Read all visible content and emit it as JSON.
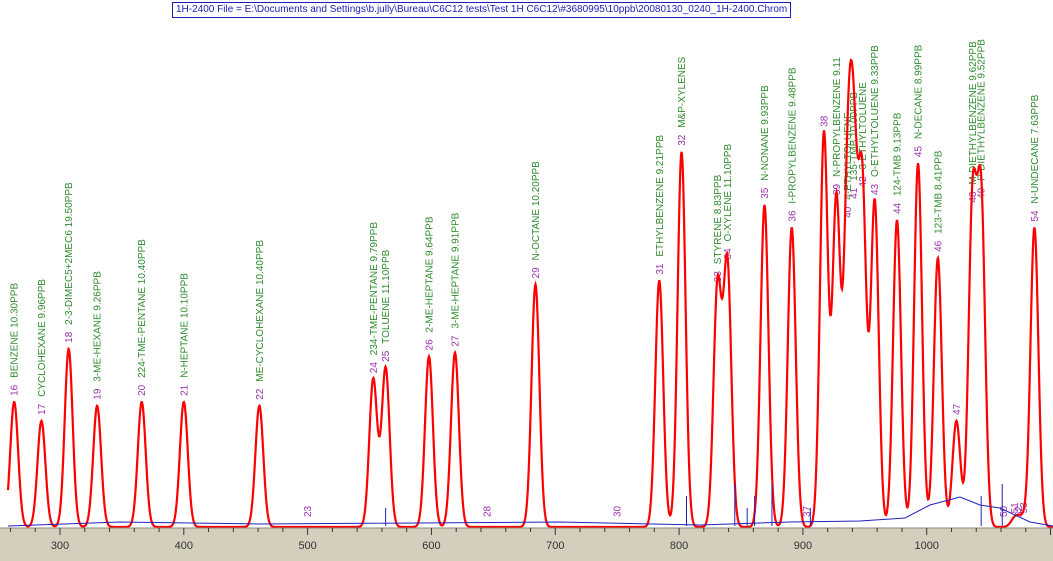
{
  "window_title": "1H-2400 File = E:\\Documents and Settings\\b.jully\\Bureau\\C6C12 tests\\Test 1H C6C12\\#3680995\\10ppb\\20080130_0240_1H-2400.Chrom",
  "chart_data": {
    "type": "line",
    "title": "1H-2400 File = E:\\Documents and Settings\\b.jully\\Bureau\\C6C12 tests\\Test 1H C6C12\\#3680995\\10ppb\\20080130_0240_1H-2400.Chrom",
    "xlabel": "",
    "ylabel": "",
    "xlim": [
      258,
      1102
    ],
    "ylim": [
      0,
      100
    ],
    "x_ticks": [
      "300",
      "400",
      "500",
      "600",
      "700",
      "800",
      "900",
      "1000"
    ],
    "grid": false,
    "colors": {
      "trace": "#ff0000",
      "baseline": "#2222bb",
      "peak_number": "#9933aa",
      "compound_name": "#2e8b2e",
      "axis_band": "#d4cfbd",
      "title_text": "#1c1cb8"
    },
    "peaks": [
      {
        "id": "16",
        "x": 263,
        "h": 33,
        "name": "BENZENE",
        "conc": "10.30PPB"
      },
      {
        "id": "17",
        "x": 285,
        "h": 28,
        "name": "CYCLOHEXANE",
        "conc": "9.96PPB"
      },
      {
        "id": "18",
        "x": 307,
        "h": 47,
        "name": "2-3-DIMEC5+2MEC6",
        "conc": "19.50PPB"
      },
      {
        "id": "19",
        "x": 330,
        "h": 32,
        "name": "3-ME-HEXANE",
        "conc": "9.26PPB"
      },
      {
        "id": "20",
        "x": 366,
        "h": 33,
        "name": "224-TME-PENTANE",
        "conc": "10.40PPB"
      },
      {
        "id": "21",
        "x": 400,
        "h": 33,
        "name": "N-HEPTANE",
        "conc": "10.10PPB"
      },
      {
        "id": "22",
        "x": 461,
        "h": 32,
        "name": "ME-CYCLOHEXANE",
        "conc": "10.40PPB"
      },
      {
        "id": "23",
        "x": 500,
        "h": 0,
        "name": "",
        "conc": ""
      },
      {
        "id": "24",
        "x": 553,
        "h": 39,
        "name": "234-TME-PENTANE",
        "conc": "9.79PPB"
      },
      {
        "id": "25",
        "x": 563,
        "h": 42,
        "name": "TOLUENE",
        "conc": "11.10PPB"
      },
      {
        "id": "26",
        "x": 598,
        "h": 45,
        "name": "2-ME-HEPTANE",
        "conc": "9.64PPB"
      },
      {
        "id": "27",
        "x": 619,
        "h": 46,
        "name": "3-ME-HEPTANE",
        "conc": "9.91PPB"
      },
      {
        "id": "28",
        "x": 645,
        "h": 0,
        "name": "",
        "conc": ""
      },
      {
        "id": "29",
        "x": 684,
        "h": 64,
        "name": "N-OCTANE",
        "conc": "10.20PPB"
      },
      {
        "id": "30",
        "x": 750,
        "h": 0,
        "name": "",
        "conc": ""
      },
      {
        "id": "31",
        "x": 784,
        "h": 65,
        "name": "ETHYLBENZENE",
        "conc": "9.21PPB"
      },
      {
        "id": "32",
        "x": 802,
        "h": 99,
        "name": "M&P-XYLENES",
        "conc": ""
      },
      {
        "id": "33",
        "x": 831,
        "h": 63,
        "name": "STYRENE",
        "conc": "8.83PPB"
      },
      {
        "id": "34",
        "x": 839,
        "h": 69,
        "name": "O-XYLENE",
        "conc": "11.10PPB"
      },
      {
        "id": "35",
        "x": 869,
        "h": 85,
        "name": "N-NONANE",
        "conc": "9.93PPB"
      },
      {
        "id": "36",
        "x": 891,
        "h": 79,
        "name": "I-PROPYLBENZENE",
        "conc": "9.48PPB"
      },
      {
        "id": "37",
        "x": 903,
        "h": 0,
        "name": "",
        "conc": ""
      },
      {
        "id": "38",
        "x": 917,
        "h": 104,
        "name": "",
        "conc": ""
      },
      {
        "id": "39",
        "x": 927,
        "h": 86,
        "name": "N-PROPYLBENZENE",
        "conc": "9.11"
      },
      {
        "id": "40",
        "x": 936,
        "h": 80,
        "name": "4-ETHYLTOLUENE",
        "conc": ""
      },
      {
        "id": "41",
        "x": 941,
        "h": 85,
        "name": "135-TMB",
        "conc": "10.00PPB"
      },
      {
        "id": "42",
        "x": 948,
        "h": 88,
        "name": "3-ETHYLTOLUENE",
        "conc": ""
      },
      {
        "id": "43",
        "x": 958,
        "h": 86,
        "name": "O-ETHYLTOLUENE",
        "conc": "9.33PPB"
      },
      {
        "id": "44",
        "x": 976,
        "h": 81,
        "name": "124-TMB",
        "conc": "9.13PPB"
      },
      {
        "id": "45",
        "x": 993,
        "h": 96,
        "name": "N-DECANE",
        "conc": "8.99PPB"
      },
      {
        "id": "46",
        "x": 1009,
        "h": 71,
        "name": "123-TMB",
        "conc": "8.41PPB"
      },
      {
        "id": "47",
        "x": 1024,
        "h": 28,
        "name": "",
        "conc": ""
      },
      {
        "id": "48",
        "x": 1037,
        "h": 84,
        "name": "M-DIETHYLBENZENE",
        "conc": "9.62PPB"
      },
      {
        "id": "49",
        "x": 1044,
        "h": 85,
        "name": "P-DIETHYLBENZENE",
        "conc": "9.52PPB"
      },
      {
        "id": "50",
        "x": 1062,
        "h": 0,
        "name": "",
        "conc": ""
      },
      {
        "id": "51",
        "x": 1071,
        "h": 2,
        "name": "",
        "conc": ""
      },
      {
        "id": "52",
        "x": 1074,
        "h": 1,
        "name": "",
        "conc": ""
      },
      {
        "id": "53",
        "x": 1078,
        "h": 2,
        "name": "",
        "conc": ""
      },
      {
        "id": "54",
        "x": 1087,
        "h": 79,
        "name": "N-UNDECANE",
        "conc": "7.63PPB"
      }
    ]
  }
}
